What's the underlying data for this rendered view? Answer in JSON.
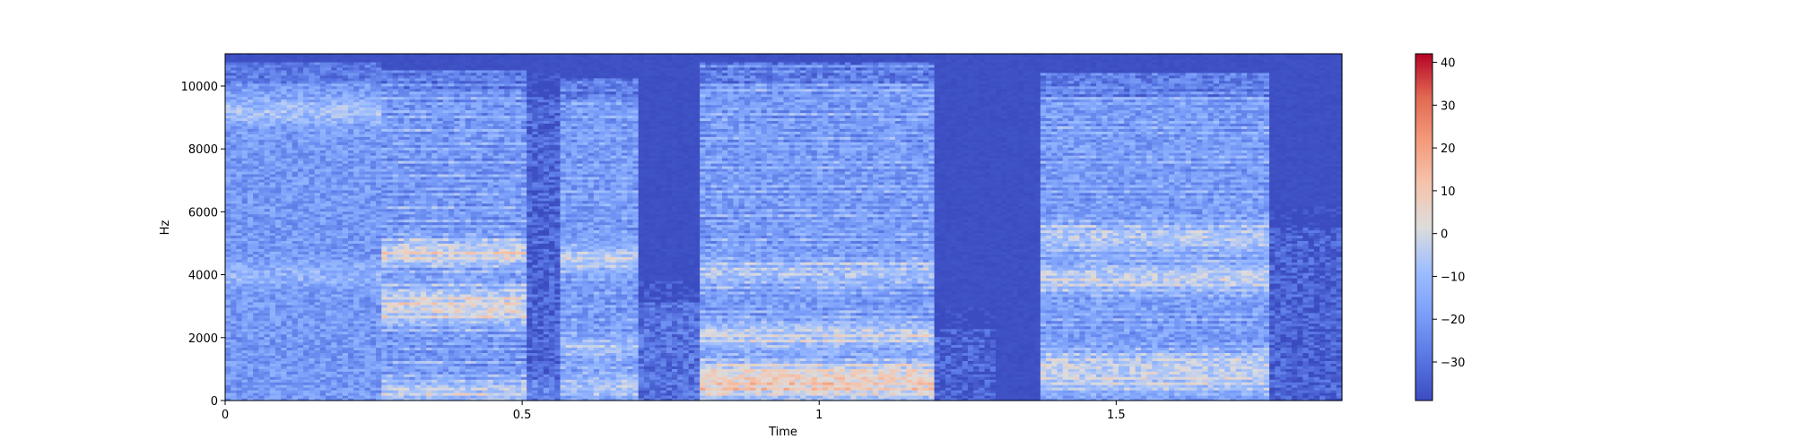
{
  "chart_data": {
    "type": "heatmap",
    "title": "",
    "xlabel": "Time",
    "ylabel": "Hz",
    "xlim": [
      0,
      1.88
    ],
    "ylim": [
      0,
      11025
    ],
    "x_ticks": [
      0,
      0.5,
      1,
      1.5
    ],
    "x_tick_labels": [
      "0",
      "0.5",
      "1",
      "1.5"
    ],
    "y_ticks": [
      0,
      2000,
      4000,
      6000,
      8000,
      10000
    ],
    "y_tick_labels": [
      "0",
      "2000",
      "4000",
      "6000",
      "8000",
      "10000"
    ],
    "colormap": "coolwarm",
    "colors": {
      "low": "#3b4cc0",
      "mid": "#dddddd",
      "high": "#b40426"
    },
    "colorbar": {
      "range": [
        -39,
        42
      ],
      "ticks": [
        40,
        30,
        20,
        10,
        0,
        -10,
        -20,
        -30
      ],
      "tick_labels": [
        "40",
        "30",
        "20",
        "10",
        "0",
        "−10",
        "−20",
        "−30"
      ]
    },
    "segments": [
      {
        "t0": 0.0,
        "t1": 0.26,
        "f_max": 10800,
        "base_db": -16,
        "harmonic_db": 0,
        "f0": 180,
        "formants": [
          [
            9200,
            12
          ],
          [
            4000,
            8
          ]
        ]
      },
      {
        "t0": 0.26,
        "t1": 0.51,
        "f_max": 10500,
        "base_db": -20,
        "harmonic_db": 14,
        "f0": 205,
        "formants": [
          [
            4700,
            22
          ],
          [
            2800,
            16
          ],
          [
            3300,
            14
          ],
          [
            300,
            14
          ]
        ]
      },
      {
        "t0": 0.51,
        "t1": 0.56,
        "f_max": 10400,
        "base_db": -30,
        "harmonic_db": 2,
        "f0": 210,
        "formants": [
          [
            300,
            10
          ]
        ]
      },
      {
        "t0": 0.56,
        "t1": 0.7,
        "f_max": 10300,
        "base_db": -18,
        "harmonic_db": 8,
        "f0": 215,
        "formants": [
          [
            4500,
            16
          ],
          [
            1700,
            10
          ],
          [
            500,
            12
          ]
        ]
      },
      {
        "t0": 0.7,
        "t1": 0.8,
        "f_max": 3800,
        "base_db": -26,
        "harmonic_db": 0,
        "f0": 200,
        "formants": []
      },
      {
        "t0": 0.8,
        "t1": 1.19,
        "f_max": 10800,
        "base_db": -19,
        "harmonic_db": 12,
        "f0": 190,
        "formants": [
          [
            4100,
            12
          ],
          [
            2100,
            16
          ],
          [
            900,
            18
          ],
          [
            400,
            20
          ]
        ]
      },
      {
        "t0": 1.19,
        "t1": 1.3,
        "f_max": 3000,
        "base_db": -30,
        "harmonic_db": 0,
        "f0": 180,
        "formants": []
      },
      {
        "t0": 1.3,
        "t1": 1.37,
        "f_max": 0,
        "base_db": -39,
        "harmonic_db": 0,
        "f0": 180,
        "formants": []
      },
      {
        "t0": 1.37,
        "t1": 1.76,
        "f_max": 10400,
        "base_db": -18,
        "harmonic_db": 10,
        "f0": 185,
        "formants": [
          [
            5200,
            14
          ],
          [
            3900,
            16
          ],
          [
            1200,
            14
          ],
          [
            600,
            12
          ]
        ]
      },
      {
        "t0": 1.76,
        "t1": 1.88,
        "f_max": 6200,
        "base_db": -30,
        "harmonic_db": 0,
        "f0": 180,
        "formants": []
      }
    ]
  }
}
